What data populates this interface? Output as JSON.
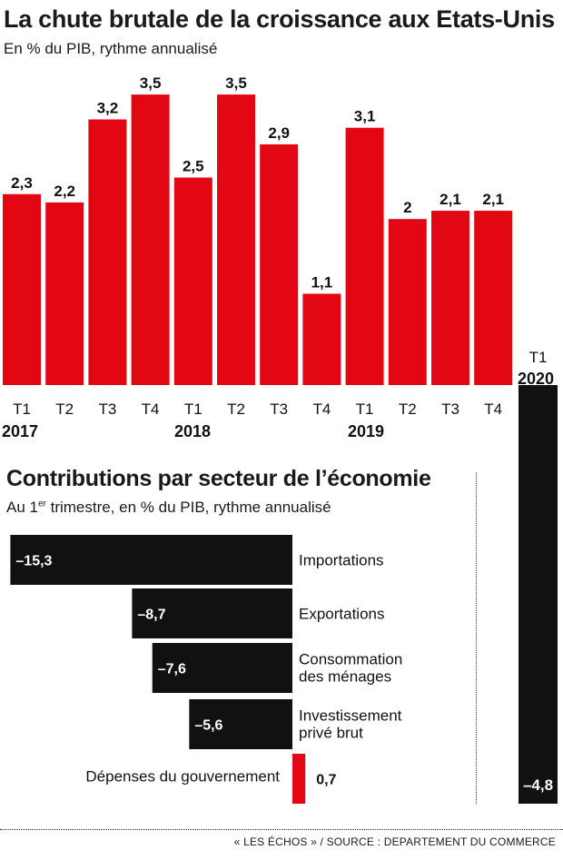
{
  "chart_data": [
    {
      "type": "bar",
      "title": "La chute brutale de la croissance aux Etats-Unis",
      "subtitle": "En % du PIB, rythme annualisé",
      "categories": [
        "T1",
        "T2",
        "T3",
        "T4",
        "T1",
        "T2",
        "T3",
        "T4",
        "T1",
        "T2",
        "T3",
        "T4",
        "T1"
      ],
      "years": [
        "2017",
        "2018",
        "2019",
        "2020"
      ],
      "values": [
        2.3,
        2.2,
        3.2,
        3.5,
        2.5,
        3.5,
        2.9,
        1.1,
        3.1,
        2.0,
        2.1,
        2.1,
        -4.8
      ],
      "value_labels": [
        "2,3",
        "2,2",
        "3,2",
        "3,5",
        "2,5",
        "3,5",
        "2,9",
        "1,1",
        "3,1",
        "2",
        "2,1",
        "2,1",
        "–4,8"
      ],
      "colors": {
        "positive": "#e30613",
        "negative": "#111111"
      },
      "grid": false
    },
    {
      "type": "bar",
      "orientation": "horizontal",
      "title": "Contributions par secteur de l’économie",
      "subtitle_prefix": "Au 1",
      "subtitle_sup": "er",
      "subtitle_suffix": " trimestre, en % du PIB, rythme annualisé",
      "categories": [
        [
          "Importations"
        ],
        [
          "Exportations"
        ],
        [
          "Consommation",
          "des ménages"
        ],
        [
          "Investissement",
          "privé brut"
        ],
        [
          "Dépenses du gouvernement"
        ]
      ],
      "values": [
        -15.3,
        -8.7,
        -7.6,
        -5.6,
        0.7
      ],
      "value_labels": [
        "–15,3",
        "–8,7",
        "–7,6",
        "–5,6",
        "0,7"
      ],
      "colors": {
        "positive": "#e30613",
        "negative": "#111111"
      }
    }
  ],
  "source": "« LES ÉCHOS » / SOURCE : DEPARTEMENT DU COMMERCE"
}
